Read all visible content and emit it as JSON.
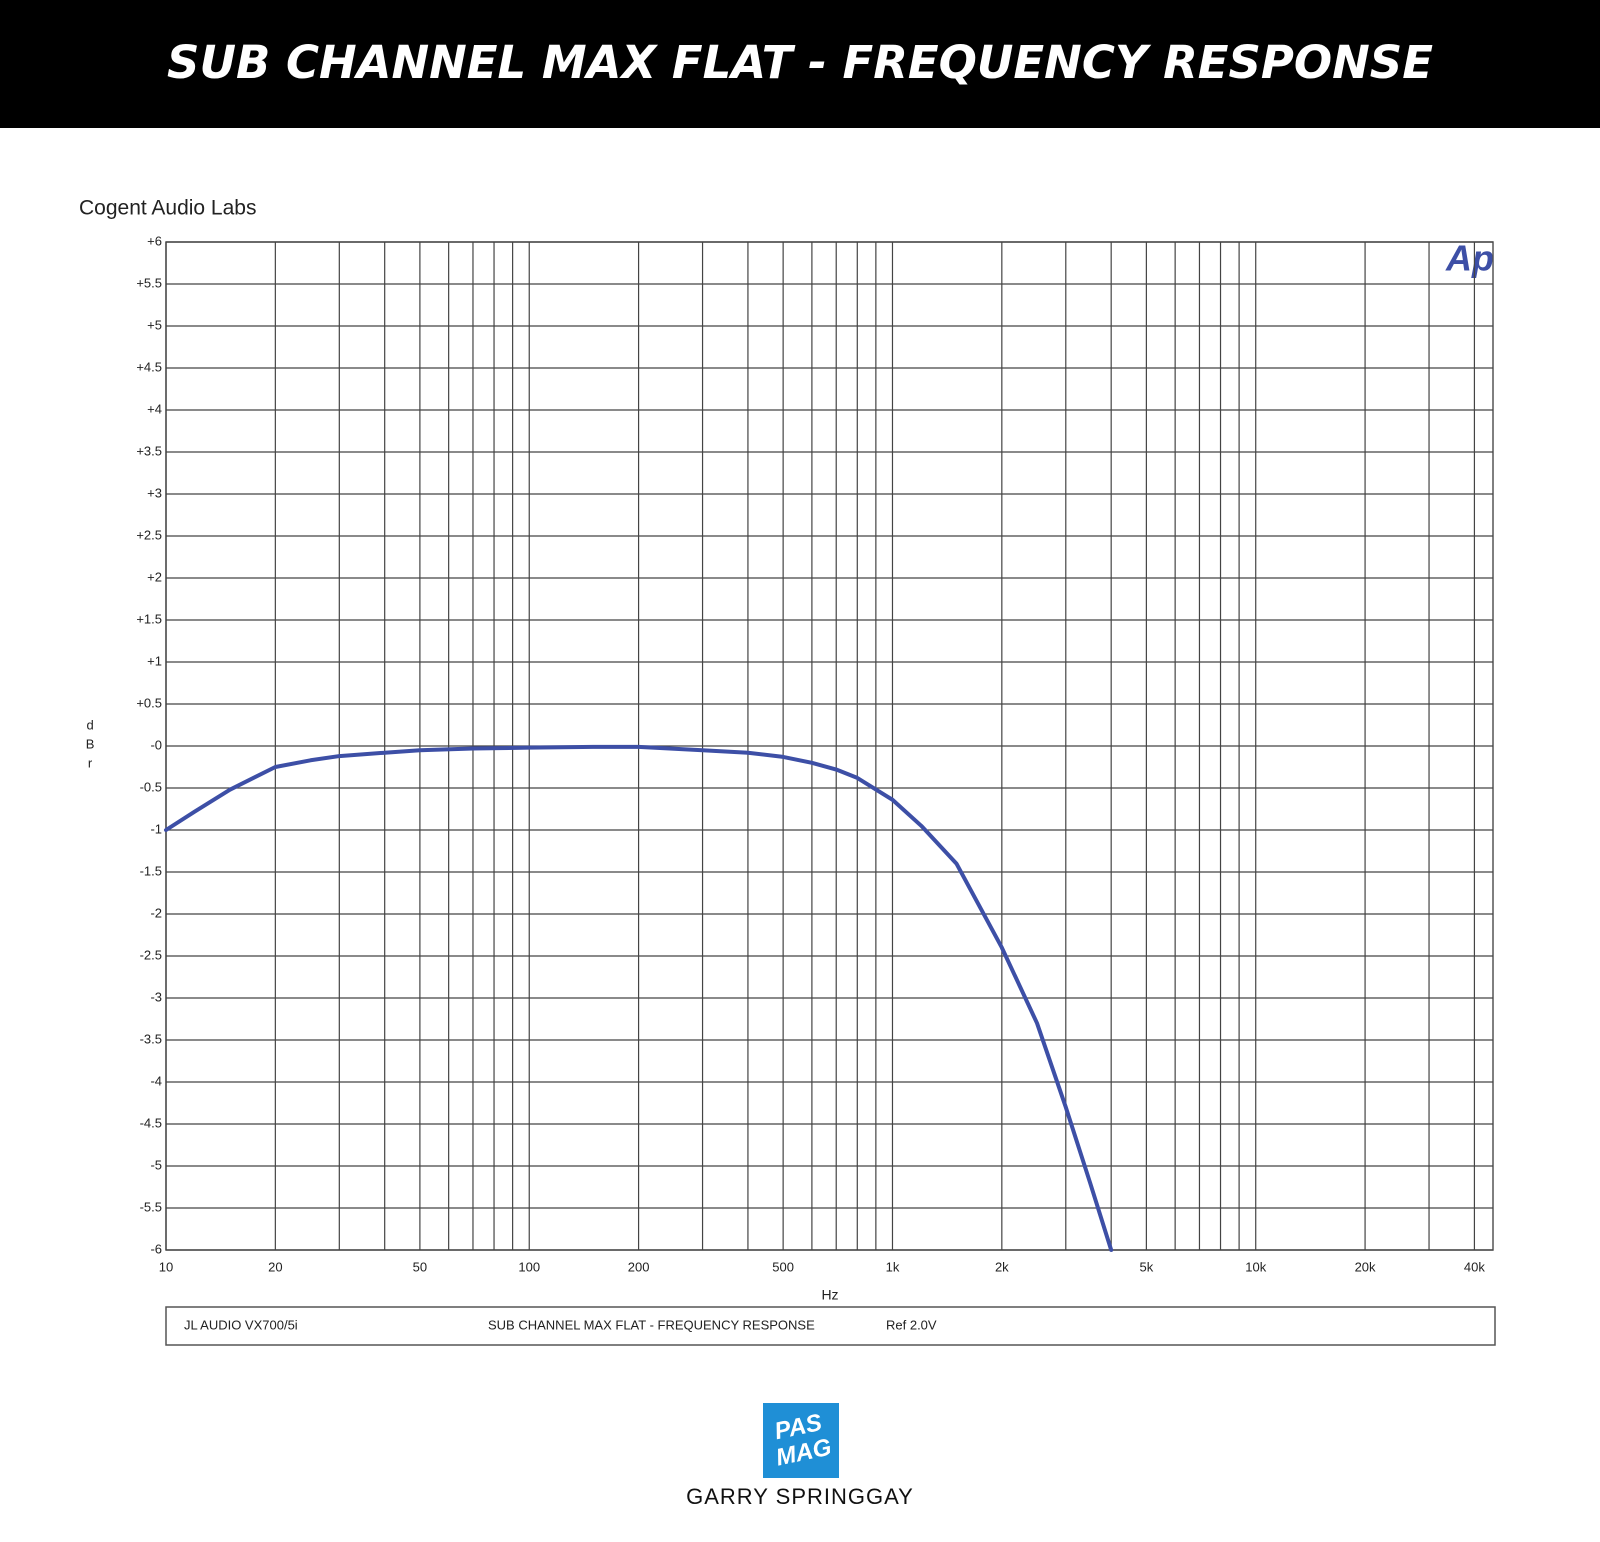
{
  "chart_data": {
    "type": "line",
    "title": "SUB CHANNEL MAX FLAT - FREQUENCY RESPONSE",
    "source": "Cogent Audio Labs",
    "logo": "Ap",
    "xlabel": "Hz",
    "ylabel": "dBr",
    "footer": [
      "JL AUDIO  VX700/5i",
      "SUB CHANNEL MAX FLAT -  FREQUENCY RESPONSE",
      "Ref 2.0V"
    ],
    "xscale": "log",
    "xlim": [
      10,
      45000
    ],
    "ylim": [
      -6,
      6
    ],
    "xticks": [
      10,
      20,
      50,
      100,
      200,
      500,
      {
        "value": 1000,
        "label": "1k"
      },
      {
        "value": 2000,
        "label": "2k"
      },
      {
        "value": 5000,
        "label": "5k"
      },
      {
        "value": 10000,
        "label": "10k"
      },
      {
        "value": 20000,
        "label": "20k"
      },
      {
        "value": 40000,
        "label": "40k"
      }
    ],
    "xgrid_minor": [
      30,
      40,
      60,
      70,
      80,
      90,
      300,
      400,
      600,
      700,
      800,
      900,
      3000,
      4000,
      6000,
      7000,
      8000,
      9000,
      30000
    ],
    "yticks": [
      {
        "value": 6,
        "label": "+6"
      },
      {
        "value": 5.5,
        "label": "+5.5"
      },
      {
        "value": 5,
        "label": "+5"
      },
      {
        "value": 4.5,
        "label": "+4.5"
      },
      {
        "value": 4,
        "label": "+4"
      },
      {
        "value": 3.5,
        "label": "+3.5"
      },
      {
        "value": 3,
        "label": "+3"
      },
      {
        "value": 2.5,
        "label": "+2.5"
      },
      {
        "value": 2,
        "label": "+2"
      },
      {
        "value": 1.5,
        "label": "+1.5"
      },
      {
        "value": 1,
        "label": "+1"
      },
      {
        "value": 0.5,
        "label": "+0.5"
      },
      {
        "value": 0,
        "label": "-0"
      },
      -0.5,
      -1,
      -1.5,
      -2,
      -2.5,
      -3,
      -3.5,
      -4,
      -4.5,
      -5,
      -5.5,
      -6
    ],
    "grid": true,
    "color": "#3d4fa6",
    "x": [
      10,
      12,
      15,
      20,
      25,
      30,
      40,
      50,
      70,
      100,
      150,
      200,
      300,
      400,
      500,
      600,
      700,
      800,
      1000,
      1200,
      1500,
      2000,
      2500,
      3000,
      3500,
      4000
    ],
    "values": [
      -1.0,
      -0.78,
      -0.52,
      -0.25,
      -0.17,
      -0.12,
      -0.08,
      -0.05,
      -0.03,
      -0.02,
      -0.01,
      -0.01,
      -0.05,
      -0.08,
      -0.13,
      -0.2,
      -0.28,
      -0.38,
      -0.64,
      -0.95,
      -1.4,
      -2.4,
      -3.3,
      -4.3,
      -5.2,
      -6.0
    ]
  },
  "branding": {
    "logo": [
      "PAS",
      "MAG"
    ],
    "credit": "GARRY SPRINGGAY"
  }
}
